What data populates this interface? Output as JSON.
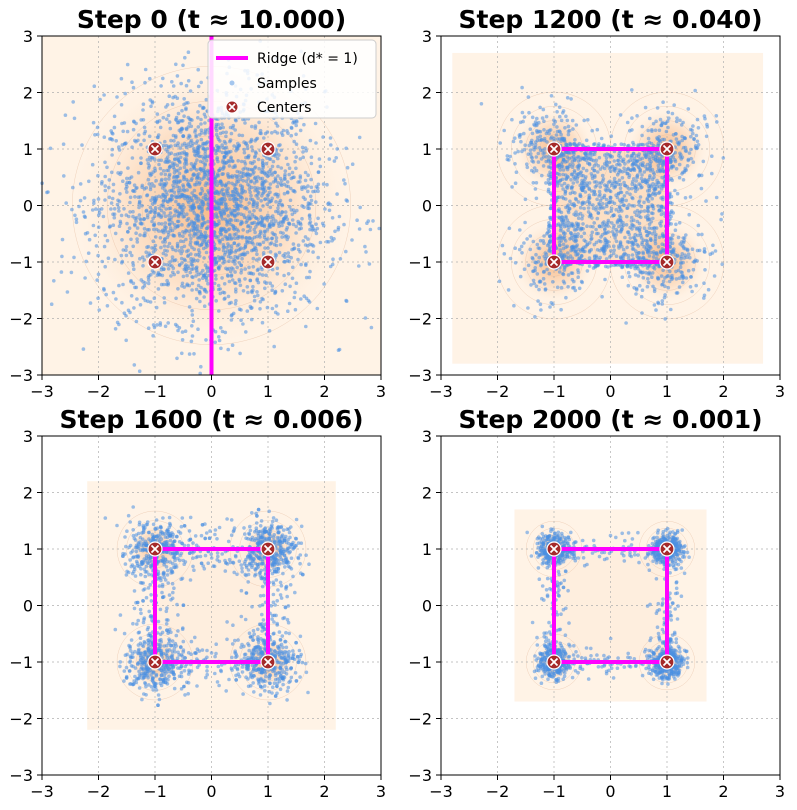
{
  "chart_data": [
    {
      "type": "scatter",
      "title": "Step 0 (t ≈ 10.000)",
      "step": 0,
      "t": 10.0,
      "xlim": [
        -3,
        3
      ],
      "ylim": [
        -3,
        3
      ],
      "xticks": [
        -3,
        -2,
        -1,
        0,
        1,
        2,
        3
      ],
      "yticks": [
        -3,
        -2,
        -1,
        0,
        1,
        2,
        3
      ],
      "grid": true,
      "legend_position": "top-right",
      "centers": [
        [
          -1,
          1
        ],
        [
          1,
          1
        ],
        [
          -1,
          -1
        ],
        [
          1,
          -1
        ]
      ],
      "ridge": [
        [
          0,
          -3
        ],
        [
          0,
          3
        ]
      ],
      "ridge_closed": false,
      "samples": {
        "count": 2500,
        "spread": 1.0,
        "mix": 0.0
      },
      "density_extent": [
        -3,
        3
      ],
      "density_spread": 1.1
    },
    {
      "type": "scatter",
      "title": "Step 1200 (t ≈ 0.040)",
      "step": 1200,
      "t": 0.04,
      "xlim": [
        -3,
        3
      ],
      "ylim": [
        -3,
        3
      ],
      "xticks": [
        -3,
        -2,
        -1,
        0,
        1,
        2,
        3
      ],
      "yticks": [
        -3,
        -2,
        -1,
        0,
        1,
        2,
        3
      ],
      "grid": true,
      "centers": [
        [
          -1,
          1
        ],
        [
          1,
          1
        ],
        [
          -1,
          -1
        ],
        [
          1,
          -1
        ]
      ],
      "ridge": [
        [
          -1,
          1
        ],
        [
          1,
          1
        ],
        [
          1,
          -1
        ],
        [
          -1,
          -1
        ]
      ],
      "ridge_closed": true,
      "samples": {
        "count": 2000,
        "spread": 0.38,
        "mix": 0.55
      },
      "density_extent": [
        -2.8,
        2.7
      ],
      "density_spread": 0.45
    },
    {
      "type": "scatter",
      "title": "Step 1600 (t ≈ 0.006)",
      "step": 1600,
      "t": 0.006,
      "xlim": [
        -3,
        3
      ],
      "ylim": [
        -3,
        3
      ],
      "xticks": [
        -3,
        -2,
        -1,
        0,
        1,
        2,
        3
      ],
      "yticks": [
        -3,
        -2,
        -1,
        0,
        1,
        2,
        3
      ],
      "grid": true,
      "centers": [
        [
          -1,
          1
        ],
        [
          1,
          1
        ],
        [
          -1,
          -1
        ],
        [
          1,
          -1
        ]
      ],
      "ridge": [
        [
          -1,
          1
        ],
        [
          1,
          1
        ],
        [
          1,
          -1
        ],
        [
          -1,
          -1
        ]
      ],
      "ridge_closed": true,
      "samples": {
        "count": 1800,
        "spread": 0.26,
        "mix": 0.3
      },
      "density_extent": [
        -2.2,
        2.2
      ],
      "density_spread": 0.3
    },
    {
      "type": "scatter",
      "title": "Step 2000 (t ≈ 0.001)",
      "step": 2000,
      "t": 0.001,
      "xlim": [
        -3,
        3
      ],
      "ylim": [
        -3,
        3
      ],
      "xticks": [
        -3,
        -2,
        -1,
        0,
        1,
        2,
        3
      ],
      "yticks": [
        -3,
        -2,
        -1,
        0,
        1,
        2,
        3
      ],
      "grid": true,
      "centers": [
        [
          -1,
          1
        ],
        [
          1,
          1
        ],
        [
          -1,
          -1
        ],
        [
          1,
          -1
        ]
      ],
      "ridge": [
        [
          -1,
          1
        ],
        [
          1,
          1
        ],
        [
          1,
          -1
        ],
        [
          -1,
          -1
        ]
      ],
      "ridge_closed": true,
      "samples": {
        "count": 1600,
        "spread": 0.14,
        "mix": 0.2
      },
      "density_extent": [
        -1.7,
        1.7
      ],
      "density_spread": 0.22
    }
  ],
  "legend": {
    "ridge_label": "Ridge (d* = 1)",
    "samples_label": "Samples",
    "centers_label": "Centers"
  },
  "colors": {
    "ridge": "#ff00ff",
    "samples": "#4a90e2",
    "centers": "#a52a2a",
    "density": "#f4a261",
    "density_bg": "#fff3e6"
  }
}
